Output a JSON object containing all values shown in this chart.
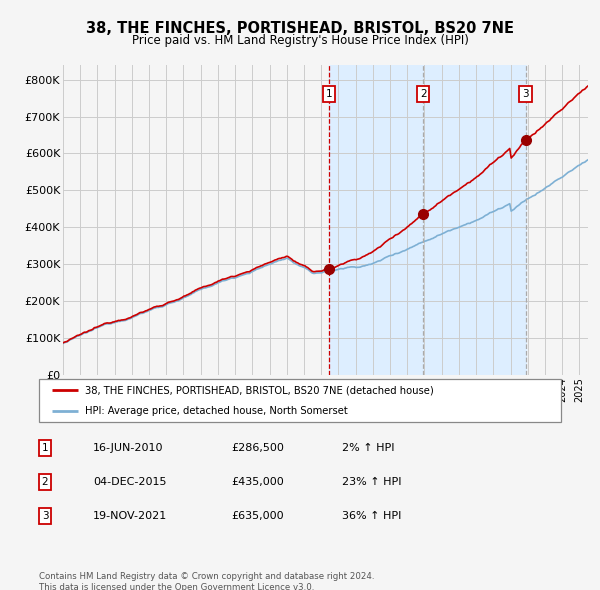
{
  "title": "38, THE FINCHES, PORTISHEAD, BRISTOL, BS20 7NE",
  "subtitle": "Price paid vs. HM Land Registry's House Price Index (HPI)",
  "ylabel_ticks": [
    "£0",
    "£100K",
    "£200K",
    "£300K",
    "£400K",
    "£500K",
    "£600K",
    "£700K",
    "£800K"
  ],
  "ytick_values": [
    0,
    100000,
    200000,
    300000,
    400000,
    500000,
    600000,
    700000,
    800000
  ],
  "ylim": [
    0,
    840000
  ],
  "xlim_start": 1995.0,
  "xlim_end": 2025.5,
  "sale_dates": [
    2010.46,
    2015.92,
    2021.88
  ],
  "sale_prices": [
    286500,
    435000,
    635000
  ],
  "sale_labels": [
    "1",
    "2",
    "3"
  ],
  "legend_line1": "38, THE FINCHES, PORTISHEAD, BRISTOL, BS20 7NE (detached house)",
  "legend_line2": "HPI: Average price, detached house, North Somerset",
  "table_rows": [
    [
      "1",
      "16-JUN-2010",
      "£286,500",
      "2% ↑ HPI"
    ],
    [
      "2",
      "04-DEC-2015",
      "£435,000",
      "23% ↑ HPI"
    ],
    [
      "3",
      "19-NOV-2021",
      "£635,000",
      "36% ↑ HPI"
    ]
  ],
  "footer": "Contains HM Land Registry data © Crown copyright and database right 2024.\nThis data is licensed under the Open Government Licence v3.0.",
  "property_line_color": "#cc0000",
  "hpi_line_color": "#7eb0d4",
  "sale_marker_color": "#990000",
  "vline_color_red": "#cc0000",
  "vline_color_gray": "#aaaaaa",
  "shade_color": "#ddeeff",
  "grid_color": "#cccccc",
  "background_color": "#f5f5f5"
}
